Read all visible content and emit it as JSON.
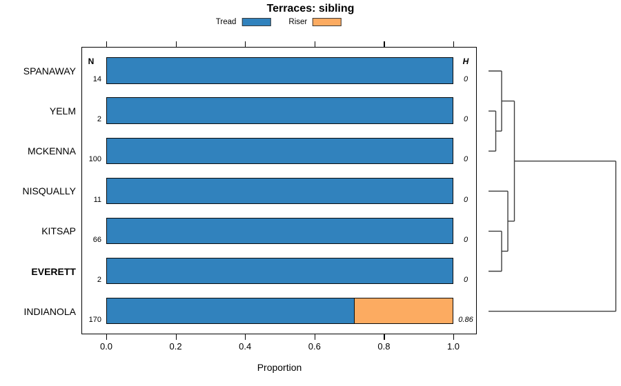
{
  "title": "Terraces: sibling",
  "legend": {
    "tread": {
      "label": "Tread",
      "color": "#3182bd"
    },
    "riser": {
      "label": "Riser",
      "color": "#fcab61"
    }
  },
  "columns": {
    "n": "N",
    "h": "H"
  },
  "x_axis": {
    "label": "Proportion",
    "ticks": [
      "0.0",
      "0.2",
      "0.4",
      "0.6",
      "0.8",
      "1.0"
    ]
  },
  "rows": [
    {
      "label": "SPANAWAY",
      "n": "14",
      "h": "0",
      "tread": 1,
      "riser": 0,
      "bold": false
    },
    {
      "label": "YELM",
      "n": "2",
      "h": "0",
      "tread": 1,
      "riser": 0,
      "bold": false
    },
    {
      "label": "MCKENNA",
      "n": "100",
      "h": "0",
      "tread": 1,
      "riser": 0,
      "bold": false
    },
    {
      "label": "NISQUALLY",
      "n": "11",
      "h": "0",
      "tread": 1,
      "riser": 0,
      "bold": false
    },
    {
      "label": "KITSAP",
      "n": "66",
      "h": "0",
      "tread": 1,
      "riser": 0,
      "bold": false
    },
    {
      "label": "EVERETT",
      "n": "2",
      "h": "0",
      "tread": 1,
      "riser": 0,
      "bold": true
    },
    {
      "label": "INDIANOLA",
      "n": "170",
      "h": "0.86",
      "tread": 0.715,
      "riser": 0.285,
      "bold": false
    }
  ],
  "chart_data": {
    "type": "bar",
    "subtype": "horizontal_stacked_proportion_with_dendrogram",
    "title": "Terraces: sibling",
    "xlabel": "Proportion",
    "xlim": [
      0,
      1
    ],
    "x_ticks": [
      0.0,
      0.2,
      0.4,
      0.6,
      0.8,
      1.0
    ],
    "categories": [
      "SPANAWAY",
      "YELM",
      "MCKENNA",
      "NISQUALLY",
      "KITSAP",
      "EVERETT",
      "INDIANOLA"
    ],
    "series": [
      {
        "name": "Tread",
        "color": "#3182bd",
        "values": [
          1,
          1,
          1,
          1,
          1,
          1,
          0.715
        ]
      },
      {
        "name": "Riser",
        "color": "#fcab61",
        "values": [
          0,
          0,
          0,
          0,
          0,
          0,
          0.285
        ]
      }
    ],
    "N": [
      14,
      2,
      100,
      11,
      66,
      2,
      170
    ],
    "H": [
      0,
      0,
      0,
      0,
      0,
      0,
      0.86
    ],
    "legend_position": "top-center",
    "grid": false,
    "axis_ticks_top_and_bottom": true,
    "bold_category": "EVERETT",
    "dendrogram": {
      "position": "right",
      "structure": "(((SPANAWAY,(YELM,MCKENNA)),(NISQUALLY,(KITSAP,EVERETT))),INDIANOLA)",
      "note": "all internal joins at height 0 except final join with INDIANOLA at large height (H=0.86)"
    }
  }
}
